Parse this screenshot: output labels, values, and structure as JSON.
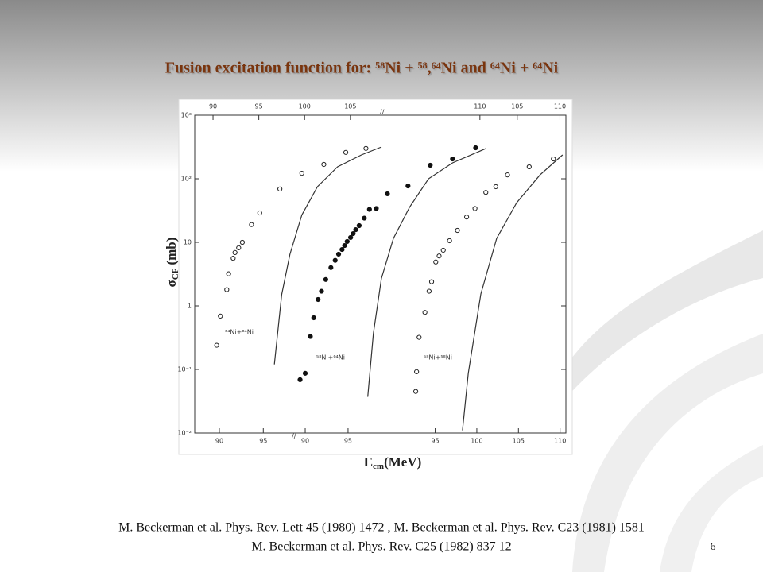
{
  "slide": {
    "title": "Fusion excitation function for: ⁵⁸Ni + ⁵⁸,⁶⁴Ni and ⁶⁴Ni + ⁶⁴Ni",
    "references": [
      "M. Beckerman et al. Phys. Rev. Lett 45 (1980) 1472 , M. Beckerman et al. Phys. Rev. C23 (1981) 1581",
      "M. Beckerman et al. Phys. Rev. C25 (1982) 837 12"
    ],
    "page_number": 6
  },
  "chart_data": {
    "type": "scatter",
    "log_y": true,
    "ylim": [
      0.01,
      1000
    ],
    "yticks": [
      {
        "value": 1000,
        "label": "10³"
      },
      {
        "value": 100,
        "label": "10²"
      },
      {
        "value": 10,
        "label": "10"
      },
      {
        "value": 1,
        "label": "1"
      },
      {
        "value": 0.1,
        "label": "10⁻¹"
      },
      {
        "value": 0.01,
        "label": "10⁻²"
      }
    ],
    "y_label": {
      "symbol": "σ",
      "subscript": "CF",
      "unit": "(mb)"
    },
    "x_label": {
      "symbol": "E",
      "subscript": "cm",
      "unit": "(MeV)"
    },
    "top_axis": [
      {
        "xlim": [
          88.0,
          108.4
        ],
        "xticks": [
          90,
          95,
          100,
          105
        ]
      },
      {
        "xlim": [
          98.3,
          112.0
        ],
        "xticks": [
          110
        ]
      },
      {
        "xlim": [
          102.6,
          110.7
        ],
        "xticks": [
          105,
          110
        ]
      }
    ],
    "bottom_axis": [
      {
        "xlim": [
          87.2,
          98.5
        ],
        "xticks": [
          90,
          95
        ]
      },
      {
        "xlim": [
          88.7,
          104.0
        ],
        "xticks": [
          90,
          95
        ]
      },
      {
        "xlim": [
          93.8,
          110.7
        ],
        "xticks": [
          95,
          100,
          105,
          110
        ]
      }
    ],
    "series": [
      {
        "name": "⁶⁴Ni+⁶⁴Ni",
        "marker": "open",
        "color": "#222",
        "xlim": [
          88.0,
          108.4
        ],
        "x": [
          90.4,
          90.8,
          91.5,
          91.7,
          92.2,
          92.4,
          92.8,
          93.2,
          94.2,
          95.1,
          97.3,
          99.7,
          102.1,
          104.5,
          106.7
        ],
        "values": [
          0.24,
          0.69,
          1.8,
          3.2,
          5.6,
          6.9,
          8.2,
          10,
          19,
          29,
          69,
          122,
          168,
          260,
          300
        ],
        "curve": {
          "x": [
            96.7,
            97.5,
            98.4,
            99.7,
            101.4,
            103.6,
            106.2,
            108.4
          ],
          "values": [
            0.12,
            1.5,
            6.5,
            27,
            75,
            154,
            237,
            316
          ]
        }
      },
      {
        "name": "⁵⁸Ni+⁶⁴Ni",
        "marker": "filled",
        "color": "#111",
        "xlim": [
          88.7,
          111.9
        ],
        "x": [
          89.4,
          90.0,
          90.6,
          91.0,
          91.5,
          91.9,
          92.4,
          93.0,
          93.5,
          93.9,
          94.3,
          94.6,
          94.9,
          95.3,
          95.6,
          95.9,
          96.3,
          96.9,
          97.5,
          98.3,
          99.6,
          102.0,
          104.6,
          107.2,
          109.9
        ],
        "values": [
          0.069,
          0.087,
          0.33,
          0.65,
          1.26,
          1.7,
          2.6,
          4.0,
          5.2,
          6.5,
          7.7,
          8.9,
          10.3,
          11.9,
          13.7,
          15.8,
          18.3,
          24,
          33,
          34,
          58,
          77,
          163,
          205,
          307
        ],
        "curve": {
          "x": [
            97.3,
            97.96,
            98.9,
            100.3,
            102.2,
            104.4,
            107.2,
            111.1
          ],
          "values": [
            0.037,
            0.37,
            2.7,
            11.5,
            36,
            100,
            178,
            299
          ]
        }
      },
      {
        "name": "⁵⁸Ni+⁵⁸Ni",
        "marker": "open",
        "color": "#222",
        "xlim": [
          90.7,
          110.9
        ],
        "x": [
          92.9,
          93.0,
          93.3,
          94.0,
          94.5,
          94.8,
          95.3,
          95.7,
          96.2,
          96.95,
          97.9,
          99.0,
          100.0,
          101.3,
          102.5,
          103.9,
          106.5,
          109.4
        ],
        "values": [
          0.045,
          0.092,
          0.32,
          0.79,
          1.7,
          2.4,
          4.9,
          6.1,
          7.5,
          10.6,
          15.4,
          25,
          34,
          61,
          75,
          115,
          154,
          205
        ],
        "curve": {
          "x": [
            98.5,
            99.2,
            100.7,
            102.6,
            105.0,
            107.8,
            110.5
          ],
          "values": [
            0.011,
            0.087,
            1.54,
            11.5,
            42,
            115,
            237
          ]
        }
      }
    ]
  }
}
